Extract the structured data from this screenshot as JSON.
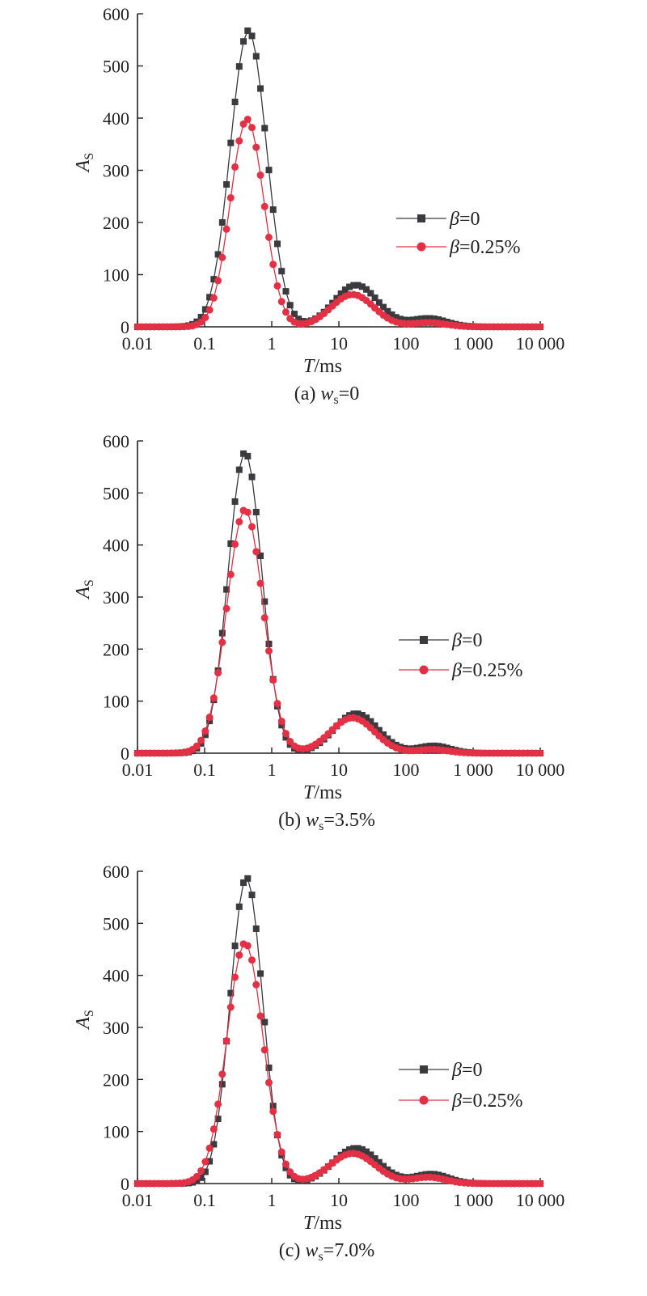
{
  "chart_data": [
    {
      "type": "line",
      "caption_prefix": "(a) ",
      "caption_var": "w",
      "caption_sub": "s",
      "caption_suffix": "=0",
      "xlabel_var": "T",
      "xlabel_unit": "/ms",
      "ylabel_var": "A",
      "ylabel_sub": "S",
      "x_scale": "log",
      "xlim": [
        0.01,
        10000
      ],
      "ylim": [
        0,
        600
      ],
      "xticks": [
        "0.01",
        "0.1",
        "1",
        "10",
        "100",
        "1 000",
        "10 000"
      ],
      "yticks": [
        "0",
        "100",
        "200",
        "300",
        "400",
        "500",
        "600"
      ],
      "legend_placement": "right",
      "series": [
        {
          "name_var": "β",
          "name_suffix": "=0",
          "color": "#3a3a3f",
          "marker": "square",
          "peak1": {
            "amp": 568,
            "center": 0.45,
            "width": 0.27
          },
          "peak2": {
            "amp": 80,
            "center": 18,
            "width": 0.33
          },
          "peak3": {
            "amp": 16,
            "center": 220,
            "width": 0.26
          }
        },
        {
          "name_var": "β",
          "name_suffix": "=0.25%",
          "color": "#e33045",
          "marker": "circle",
          "peak1": {
            "amp": 398,
            "center": 0.43,
            "width": 0.25
          },
          "peak2": {
            "amp": 62,
            "center": 16,
            "width": 0.32
          },
          "peak3": {
            "amp": 8,
            "center": 220,
            "width": 0.26
          }
        }
      ]
    },
    {
      "type": "line",
      "caption_prefix": "(b) ",
      "caption_var": "w",
      "caption_sub": "s",
      "caption_suffix": "=3.5%",
      "xlabel_var": "T",
      "xlabel_unit": "/ms",
      "ylabel_var": "A",
      "ylabel_sub": "S",
      "x_scale": "log",
      "xlim": [
        0.01,
        10000
      ],
      "ylim": [
        0,
        600
      ],
      "xticks": [
        "0.01",
        "0.1",
        "1",
        "10",
        "100",
        "1 000",
        "10 000"
      ],
      "yticks": [
        "0",
        "100",
        "200",
        "300",
        "400",
        "500",
        "600"
      ],
      "legend_placement": "right",
      "series": [
        {
          "name_var": "β",
          "name_suffix": "=0",
          "color": "#3a3a3f",
          "marker": "square",
          "peak1": {
            "amp": 578,
            "center": 0.4,
            "width": 0.25
          },
          "peak2": {
            "amp": 76,
            "center": 18,
            "width": 0.33
          },
          "peak3": {
            "amp": 14,
            "center": 260,
            "width": 0.24
          }
        },
        {
          "name_var": "β",
          "name_suffix": "=0.25%",
          "color": "#e33045",
          "marker": "circle",
          "peak1": {
            "amp": 468,
            "center": 0.4,
            "width": 0.27
          },
          "peak2": {
            "amp": 68,
            "center": 16,
            "width": 0.33
          },
          "peak3": {
            "amp": 7,
            "center": 250,
            "width": 0.24
          }
        }
      ]
    },
    {
      "type": "line",
      "caption_prefix": "(c) ",
      "caption_var": "w",
      "caption_sub": "s",
      "caption_suffix": "=7.0%",
      "xlabel_var": "T",
      "xlabel_unit": "/ms",
      "ylabel_var": "A",
      "ylabel_sub": "S",
      "x_scale": "log",
      "xlim": [
        0.01,
        10000
      ],
      "ylim": [
        0,
        600
      ],
      "xticks": [
        "0.01",
        "0.1",
        "1",
        "10",
        "100",
        "1 000",
        "10 000"
      ],
      "yticks": [
        "0",
        "100",
        "200",
        "300",
        "400",
        "500",
        "600"
      ],
      "legend_placement": "right",
      "series": [
        {
          "name_var": "β",
          "name_suffix": "=0",
          "color": "#3a3a3f",
          "marker": "square",
          "peak1": {
            "amp": 588,
            "center": 0.42,
            "width": 0.24
          },
          "peak2": {
            "amp": 68,
            "center": 18,
            "width": 0.34
          },
          "peak3": {
            "amp": 18,
            "center": 240,
            "width": 0.25
          }
        },
        {
          "name_var": "β",
          "name_suffix": "=0.25%",
          "color": "#e33045",
          "marker": "circle",
          "peak1": {
            "amp": 462,
            "center": 0.4,
            "width": 0.27
          },
          "peak2": {
            "amp": 58,
            "center": 16,
            "width": 0.34
          },
          "peak3": {
            "amp": 12,
            "center": 220,
            "width": 0.25
          }
        }
      ]
    }
  ]
}
